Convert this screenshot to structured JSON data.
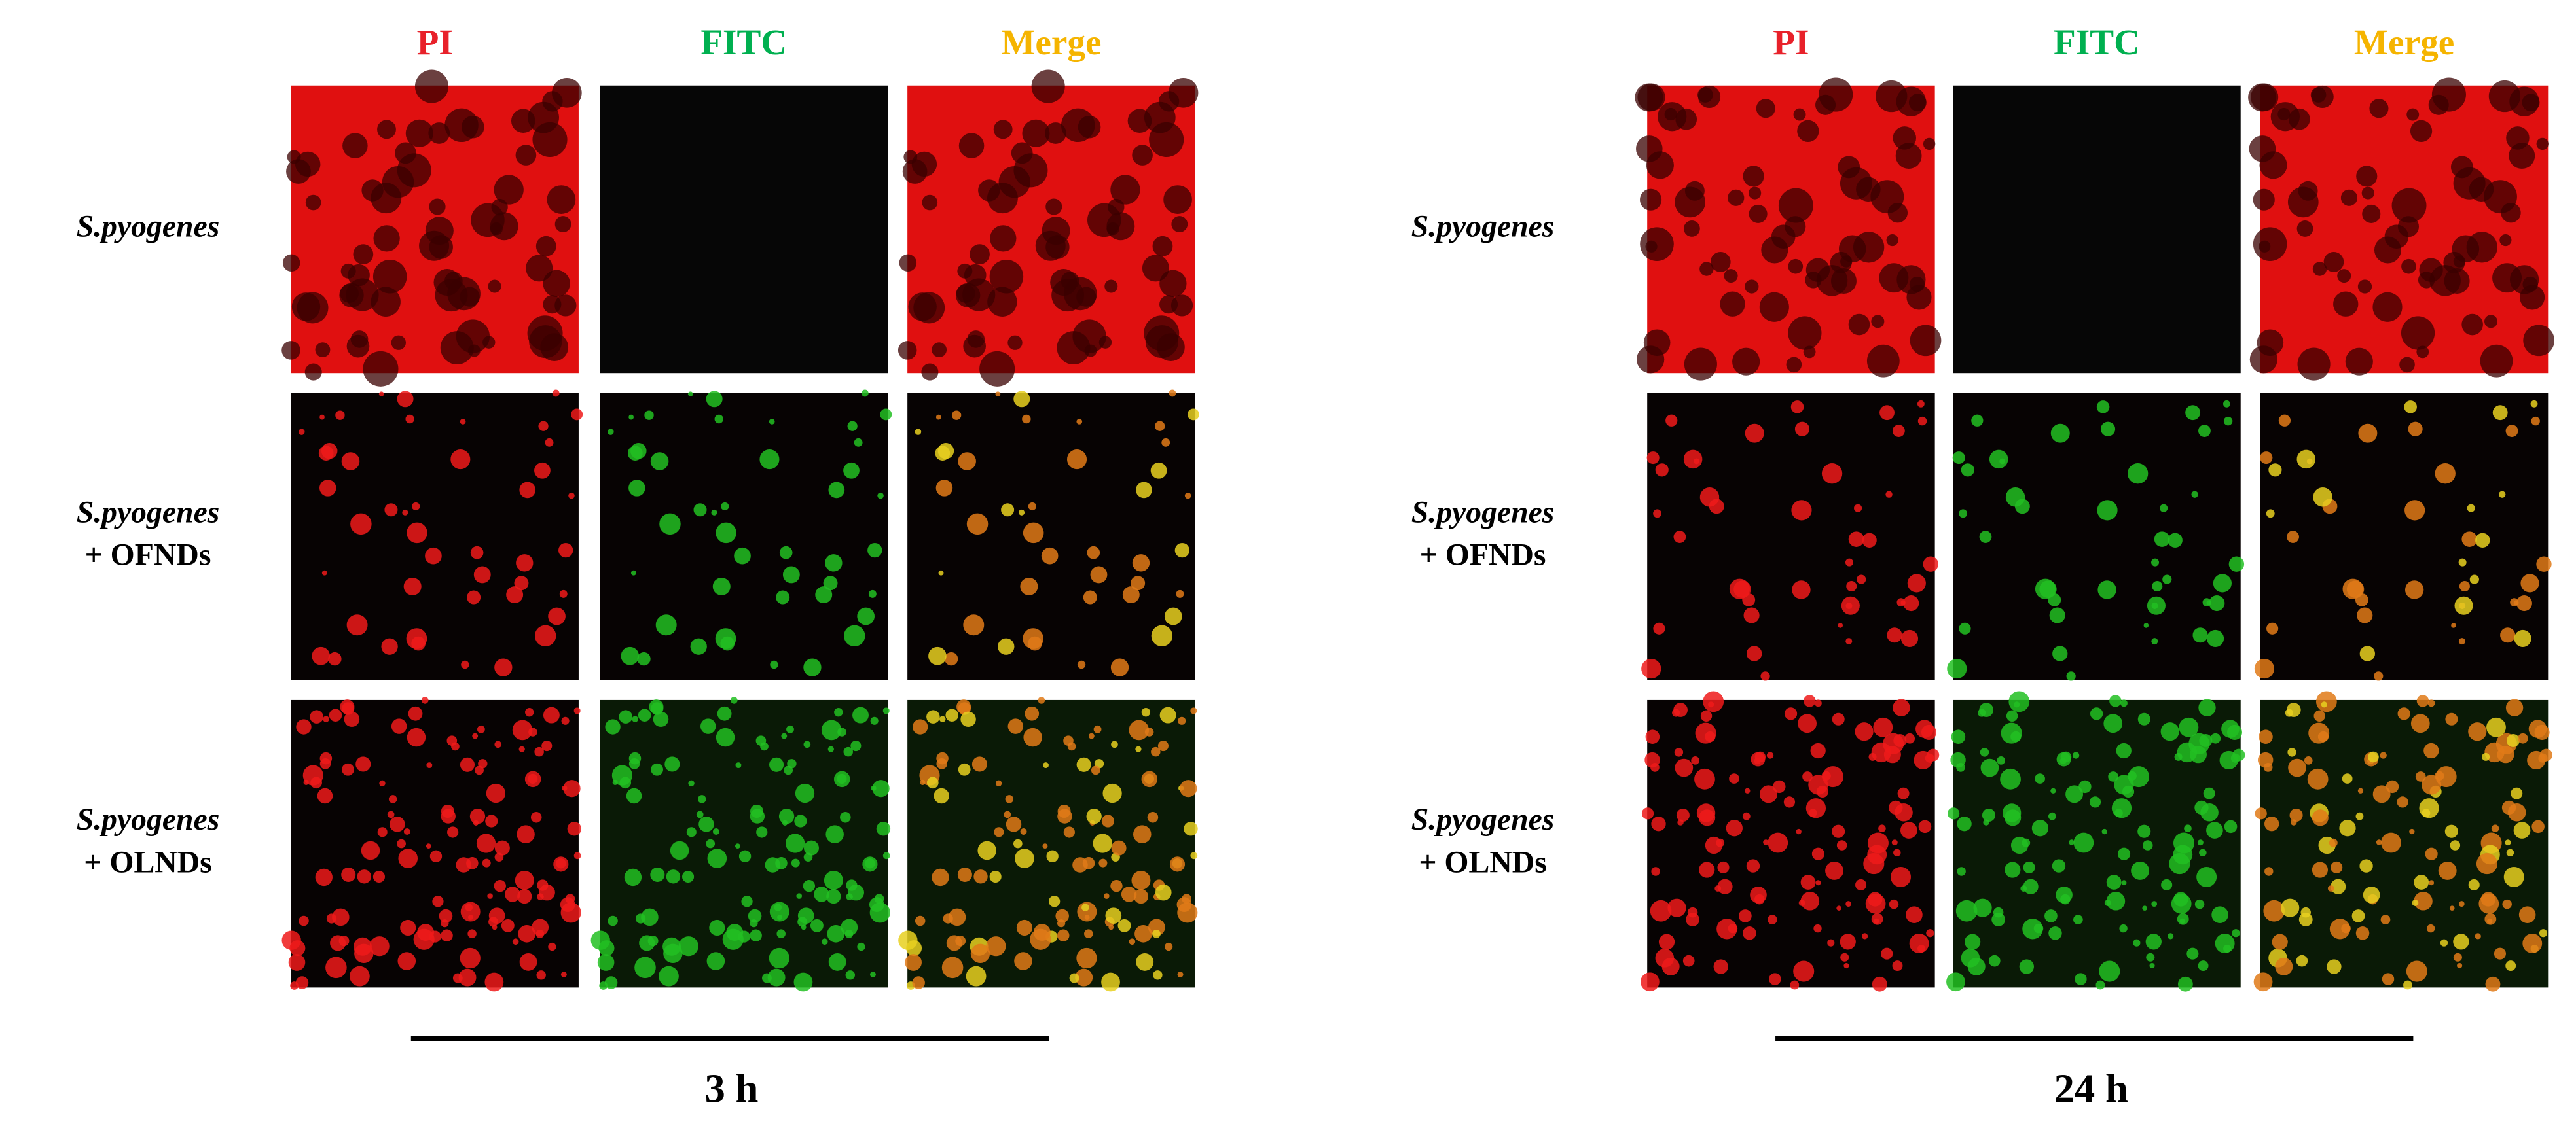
{
  "panels": [
    {
      "time": "3 h",
      "columns": [
        "PI",
        "FITC",
        "Merge"
      ],
      "rows": [
        {
          "species": "S.pyogenes"
        },
        {
          "species": "S.pyogenes",
          "treatment": "+ OFNDs"
        },
        {
          "species": "S.pyogenes",
          "treatment": "+ OLNDs"
        }
      ]
    },
    {
      "time": "24 h",
      "columns": [
        "PI",
        "FITC",
        "Merge"
      ],
      "rows": [
        {
          "species": "S.pyogenes"
        },
        {
          "species": "S.pyogenes",
          "treatment": "+ OFNDs"
        },
        {
          "species": "S.pyogenes",
          "treatment": "+ OLNDs"
        }
      ]
    }
  ]
}
